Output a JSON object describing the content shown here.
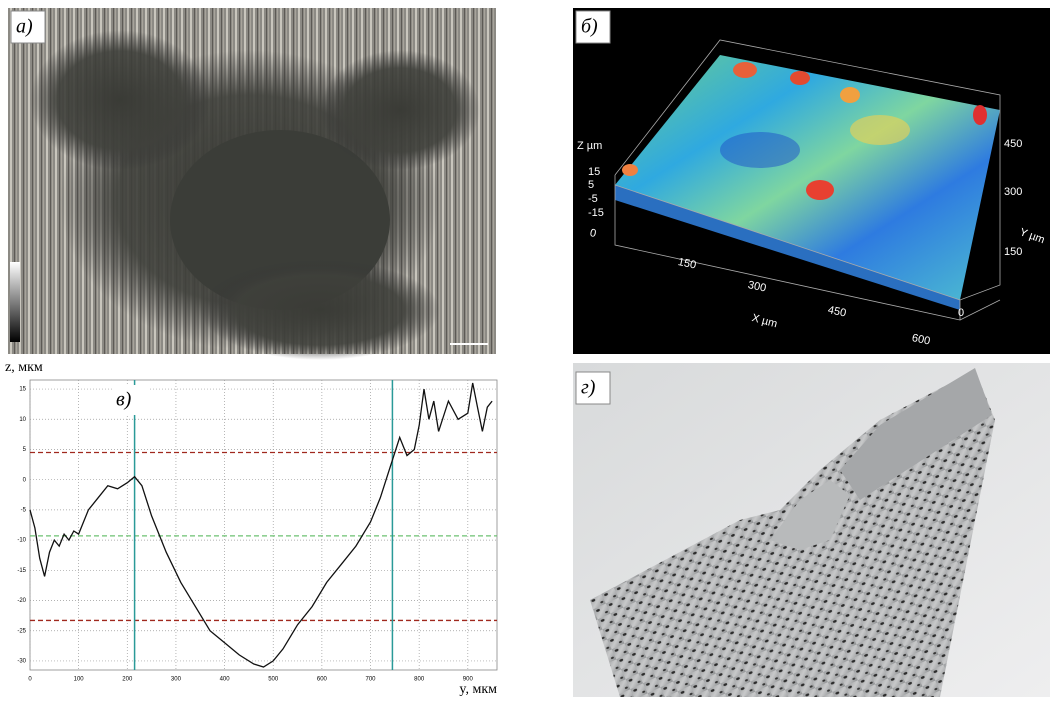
{
  "panel_labels": [
    "а)",
    "б)",
    "в)",
    "г)"
  ],
  "surface_plot": {
    "z_label": "Z µm",
    "z_ticks": [
      "15",
      "5",
      "-5",
      "-15"
    ],
    "x_label": "X µm",
    "x_ticks": [
      "0",
      "150",
      "300",
      "450",
      "600"
    ],
    "y_label": "Y µm",
    "y_ticks": [
      "0",
      "150",
      "300",
      "450"
    ]
  },
  "chart_data": {
    "type": "line",
    "x_label": "y, мкм",
    "y_label": "z, мкм",
    "x": [
      0,
      10,
      20,
      30,
      40,
      50,
      60,
      70,
      80,
      90,
      100,
      110,
      120,
      140,
      160,
      180,
      200,
      215,
      230,
      250,
      280,
      310,
      340,
      370,
      400,
      430,
      460,
      480,
      500,
      520,
      550,
      580,
      610,
      640,
      670,
      700,
      720,
      740,
      760,
      775,
      790,
      800,
      810,
      820,
      830,
      840,
      860,
      880,
      900,
      910,
      920,
      930,
      940,
      950
    ],
    "series": [
      {
        "color": "#111111",
        "values": [
          -5,
          -8,
          -13,
          -16,
          -12,
          -10,
          -11,
          -9,
          -10,
          -8.5,
          -9,
          -7,
          -5,
          -3,
          -1,
          -1.5,
          -0.5,
          0.5,
          -1,
          -6,
          -12,
          -17,
          -21,
          -25,
          -27,
          -29,
          -30.5,
          -31,
          -30,
          -28,
          -24,
          -21,
          -17,
          -14,
          -11,
          -7,
          -3,
          2,
          7,
          4,
          5,
          9,
          15,
          10,
          13,
          8,
          13,
          10,
          11,
          16,
          12,
          8,
          12,
          13
        ]
      }
    ],
    "xlim": [
      0,
      960
    ],
    "ylim": [
      -31.5,
      16.5
    ],
    "xticks": [
      0,
      100,
      200,
      300,
      400,
      500,
      600,
      700,
      800,
      900
    ],
    "yticks": [
      15,
      10,
      5,
      0,
      -5,
      -10,
      -15,
      -20,
      -25,
      -30
    ],
    "grid": true,
    "hlines": [
      {
        "value": 4.5,
        "color": "#a0281e"
      },
      {
        "value": -9.3,
        "color": "#6cc070"
      },
      {
        "value": -23.3,
        "color": "#a0281e"
      }
    ],
    "vlines": [
      {
        "value": 215,
        "color": "#2a9a98"
      },
      {
        "value": 745,
        "color": "#2a9a98"
      }
    ]
  }
}
